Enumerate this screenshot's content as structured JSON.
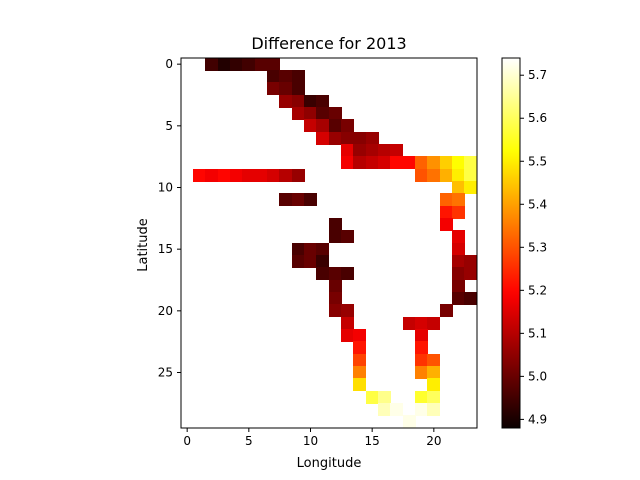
{
  "chart_data": {
    "type": "heatmap",
    "title": "Difference for 2013",
    "xlabel": "Longitude",
    "ylabel": "Latitude",
    "xlim": [
      -0.5,
      23.5
    ],
    "ylim": [
      29.5,
      -0.5
    ],
    "x_ticks": [
      0,
      5,
      10,
      15,
      20
    ],
    "y_ticks": [
      0,
      5,
      10,
      15,
      20,
      25
    ],
    "x_tick_labels": [
      "0",
      "5",
      "10",
      "15",
      "20"
    ],
    "y_tick_labels": [
      "0",
      "5",
      "10",
      "15",
      "20",
      "25"
    ],
    "colormap": "hot",
    "colorbar": {
      "range": [
        4.88,
        5.74
      ],
      "ticks": [
        4.9,
        5.0,
        5.1,
        5.2,
        5.3,
        5.4,
        5.5,
        5.6,
        5.7
      ],
      "tick_labels": [
        "4.9",
        "5.0",
        "5.1",
        "5.2",
        "5.3",
        "5.4",
        "5.5",
        "5.6",
        "5.7"
      ]
    },
    "rows": [
      [
        0,
        2,
        [
          4.95,
          4.92,
          4.92,
          4.92,
          4.95,
          4.98
        ]
      ],
      [
        0,
        3,
        [
          4.91,
          4.93,
          4.95,
          4.98
        ]
      ],
      [
        1,
        7,
        [
          4.96,
          4.98,
          4.96
        ]
      ],
      [
        2,
        7,
        [
          5.02,
          5.0,
          4.96
        ]
      ],
      [
        3,
        8,
        [
          5.06,
          5.04,
          4.94,
          4.96
        ]
      ],
      [
        4,
        9,
        [
          5.08,
          5.05,
          4.98,
          5.0
        ]
      ],
      [
        5,
        10,
        [
          5.12,
          5.08,
          4.98,
          5.02
        ]
      ],
      [
        6,
        11,
        [
          5.14,
          5.06,
          5.04,
          5.04,
          5.06
        ]
      ],
      [
        7,
        13,
        [
          5.16,
          5.06,
          5.08,
          5.1,
          5.12
        ]
      ],
      [
        8,
        13,
        [
          5.18,
          5.1,
          5.12,
          5.14,
          5.2,
          5.2,
          5.32,
          5.38,
          5.46,
          5.52,
          5.58
        ]
      ],
      [
        9,
        1,
        [
          5.2,
          5.18,
          5.2,
          5.18,
          5.16,
          5.16,
          5.14,
          5.1,
          5.06
        ]
      ],
      [
        9,
        19,
        [
          5.3,
          5.34,
          5.42,
          5.5,
          5.58
        ]
      ],
      [
        10,
        22,
        [
          5.44,
          5.5
        ]
      ],
      [
        11,
        8,
        [
          4.98,
          5.0,
          4.96
        ]
      ],
      [
        11,
        21,
        [
          5.32,
          5.34
        ]
      ],
      [
        12,
        21,
        [
          5.22,
          5.26
        ]
      ],
      [
        13,
        12,
        [
          4.96
        ]
      ],
      [
        13,
        21,
        [
          5.18
        ]
      ],
      [
        14,
        12,
        [
          4.96,
          4.98
        ]
      ],
      [
        14,
        22,
        [
          5.16
        ]
      ],
      [
        15,
        9,
        [
          4.96,
          5.0,
          4.98
        ]
      ],
      [
        15,
        22,
        [
          5.14
        ]
      ],
      [
        16,
        9,
        [
          4.98,
          5.0,
          4.94
        ]
      ],
      [
        16,
        22,
        [
          5.08,
          5.06
        ]
      ],
      [
        17,
        11,
        [
          4.96,
          4.98,
          4.96
        ]
      ],
      [
        17,
        22,
        [
          5.04,
          5.06
        ]
      ],
      [
        18,
        12,
        [
          5.0
        ]
      ],
      [
        18,
        22,
        [
          5.02
        ]
      ],
      [
        19,
        12,
        [
          5.02
        ]
      ],
      [
        19,
        22,
        [
          4.98,
          4.96
        ]
      ],
      [
        20,
        12,
        [
          5.04,
          5.06
        ]
      ],
      [
        20,
        21,
        [
          5.02
        ]
      ],
      [
        21,
        13,
        [
          5.12
        ]
      ],
      [
        21,
        18,
        [
          5.12,
          5.14,
          5.12
        ]
      ],
      [
        22,
        13,
        [
          5.16,
          5.18
        ]
      ],
      [
        22,
        19,
        [
          5.16
        ]
      ],
      [
        23,
        14,
        [
          5.22
        ]
      ],
      [
        23,
        19,
        [
          5.22
        ]
      ],
      [
        24,
        14,
        [
          5.28
        ]
      ],
      [
        24,
        19,
        [
          5.26,
          5.3
        ]
      ],
      [
        25,
        14,
        [
          5.36
        ]
      ],
      [
        25,
        19,
        [
          5.36,
          5.42
        ]
      ],
      [
        26,
        14,
        [
          5.48
        ]
      ],
      [
        26,
        20,
        [
          5.5
        ]
      ],
      [
        27,
        15,
        [
          5.58,
          5.64
        ]
      ],
      [
        27,
        19,
        [
          5.56,
          5.6
        ]
      ],
      [
        28,
        16,
        [
          5.68,
          5.72,
          5.74,
          5.72,
          5.68
        ]
      ],
      [
        29,
        18,
        [
          5.72
        ]
      ]
    ]
  }
}
